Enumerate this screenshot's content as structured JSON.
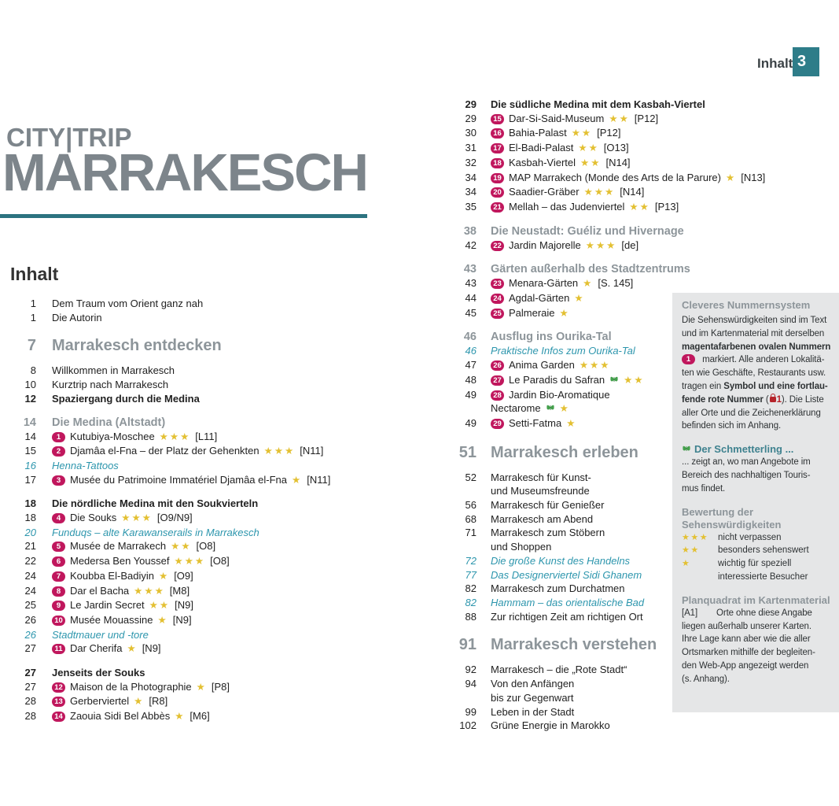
{
  "colors": {
    "teal_accent": "#2e7d89",
    "teal_rule": "#2c7380",
    "brand_gray": "#7d858b",
    "heading_gray": "#8d959a",
    "badge_magenta": "#c0175d",
    "star_gold": "#e3c032",
    "italic_teal": "#2d96ad",
    "sidebar_bg": "#e5e6e7",
    "sidebar_teal": "#3f828f",
    "butterfly_green": "#44a04c",
    "bag_red": "#b5232a",
    "text_black": "#222222"
  },
  "page_header": {
    "label": "Inhalt",
    "page_number": "3"
  },
  "brand": {
    "series": "CITY|TRIP",
    "title": "MARRAKESCH"
  },
  "toc": {
    "heading": "Inhalt",
    "left_column": [
      {
        "page": "1",
        "type": "plain",
        "label": "Dem Traum vom Orient ganz nah"
      },
      {
        "page": "1",
        "type": "plain",
        "label": "Die Autorin"
      },
      {
        "page": "7",
        "type": "chapter",
        "label": "Marrakesch entdecken"
      },
      {
        "page": "8",
        "type": "plain",
        "label": "Willkommen in Marrakesch"
      },
      {
        "page": "10",
        "type": "plain",
        "label": "Kurztrip nach Marrakesch"
      },
      {
        "page": "12",
        "type": "bold",
        "label": "Spaziergang durch die Medina"
      },
      {
        "page": "14",
        "type": "heading",
        "label": "Die Medina (Altstadt)",
        "gap": true
      },
      {
        "page": "14",
        "type": "poi",
        "num": "1",
        "label": "Kutubiya-Moschee",
        "stars": 3,
        "ref": "[L11]"
      },
      {
        "page": "15",
        "type": "poi",
        "num": "2",
        "label": "Djamâa el-Fna – der Platz der Gehenkten",
        "stars": 3,
        "ref": "[N11]"
      },
      {
        "page": "16",
        "type": "italic",
        "label": "Henna-Tattoos"
      },
      {
        "page": "17",
        "type": "poi",
        "num": "3",
        "label": "Musée du Patrimoine Immatériel Djamâa el-Fna",
        "stars": 1,
        "ref": "[N11]"
      },
      {
        "page": "18",
        "type": "bold",
        "label": "Die nördliche Medina mit den Soukvierteln",
        "gap": true
      },
      {
        "page": "18",
        "type": "poi",
        "num": "4",
        "label": "Die Souks",
        "stars": 3,
        "ref": "[O9/N9]"
      },
      {
        "page": "20",
        "type": "italic",
        "label": "Funduqs – alte Karawanserails in Marrakesch"
      },
      {
        "page": "21",
        "type": "poi",
        "num": "5",
        "label": "Musée de Marrakech",
        "stars": 2,
        "ref": "[O8]"
      },
      {
        "page": "22",
        "type": "poi",
        "num": "6",
        "label": "Medersa Ben Youssef",
        "stars": 3,
        "ref": "[O8]"
      },
      {
        "page": "24",
        "type": "poi",
        "num": "7",
        "label": "Koubba El-Badiyin",
        "stars": 1,
        "ref": "[O9]"
      },
      {
        "page": "24",
        "type": "poi",
        "num": "8",
        "label": "Dar el Bacha",
        "stars": 3,
        "ref": "[M8]"
      },
      {
        "page": "25",
        "type": "poi",
        "num": "9",
        "label": "Le Jardin Secret",
        "stars": 2,
        "ref": "[N9]"
      },
      {
        "page": "26",
        "type": "poi",
        "num": "10",
        "label": "Musée Mouassine",
        "stars": 1,
        "ref": "[N9]"
      },
      {
        "page": "26",
        "type": "italic",
        "label": "Stadtmauer und -tore"
      },
      {
        "page": "27",
        "type": "poi",
        "num": "11",
        "label": "Dar Cherifa",
        "stars": 1,
        "ref": "[N9]"
      },
      {
        "page": "27",
        "type": "bold",
        "label": "Jenseits der Souks",
        "gap": true
      },
      {
        "page": "27",
        "type": "poi",
        "num": "12",
        "label": "Maison de la Photographie",
        "stars": 1,
        "ref": "[P8]"
      },
      {
        "page": "28",
        "type": "poi",
        "num": "13",
        "label": "Gerberviertel",
        "stars": 1,
        "ref": "[R8]"
      },
      {
        "page": "28",
        "type": "poi",
        "num": "14",
        "label": "Zaouia Sidi Bel Abbès",
        "stars": 1,
        "ref": "[M6]"
      }
    ],
    "right_column": [
      {
        "page": "29",
        "type": "bold",
        "label": "Die südliche Medina mit dem Kasbah-Viertel"
      },
      {
        "page": "29",
        "type": "poi",
        "num": "15",
        "label": "Dar-Si-Said-Museum",
        "stars": 2,
        "ref": "[P12]"
      },
      {
        "page": "30",
        "type": "poi",
        "num": "16",
        "label": "Bahia-Palast",
        "stars": 2,
        "ref": "[P12]"
      },
      {
        "page": "31",
        "type": "poi",
        "num": "17",
        "label": "El-Badi-Palast",
        "stars": 2,
        "ref": "[O13]"
      },
      {
        "page": "32",
        "type": "poi",
        "num": "18",
        "label": "Kasbah-Viertel",
        "stars": 2,
        "ref": "[N14]"
      },
      {
        "page": "34",
        "type": "poi",
        "num": "19",
        "label": "MAP Marrakech (Monde des Arts de la Parure)",
        "stars": 1,
        "ref": "[N13]"
      },
      {
        "page": "34",
        "type": "poi",
        "num": "20",
        "label": "Saadier-Gräber",
        "stars": 3,
        "ref": "[N14]"
      },
      {
        "page": "35",
        "type": "poi",
        "num": "21",
        "label": "Mellah – das Judenviertel",
        "stars": 2,
        "ref": "[P13]"
      },
      {
        "page": "38",
        "type": "heading",
        "label": "Die Neustadt: Guéliz und Hivernage",
        "gap": true
      },
      {
        "page": "42",
        "type": "poi",
        "num": "22",
        "label": "Jardin Majorelle",
        "stars": 3,
        "ref": "[de]"
      },
      {
        "page": "43",
        "type": "heading",
        "label": "Gärten außerhalb des Stadtzentrums",
        "gap": true
      },
      {
        "page": "43",
        "type": "poi",
        "num": "23",
        "label": "Menara-Gärten",
        "stars": 1,
        "ref": "[S. 145]"
      },
      {
        "page": "44",
        "type": "poi",
        "num": "24",
        "label": "Agdal-Gärten",
        "stars": 1
      },
      {
        "page": "45",
        "type": "poi",
        "num": "25",
        "label": "Palmeraie",
        "stars": 1
      },
      {
        "page": "46",
        "type": "heading",
        "label": "Ausflug ins Ourika-Tal",
        "gap": true
      },
      {
        "page": "46",
        "type": "italic",
        "label": "Praktische Infos zum Ourika-Tal"
      },
      {
        "page": "47",
        "type": "poi",
        "num": "26",
        "label": "Anima Garden",
        "stars": 3
      },
      {
        "page": "48",
        "type": "poi",
        "num": "27",
        "label": "Le Paradis du Safran",
        "butterfly": true,
        "stars": 2
      },
      {
        "page": "49",
        "type": "poi",
        "num": "28",
        "label": "Jardin Bio-Aromatique",
        "label2": "Nectarome",
        "butterfly2": true,
        "stars2": 1
      },
      {
        "page": "49",
        "type": "poi",
        "num": "29",
        "label": "Setti-Fatma",
        "stars": 1
      },
      {
        "page": "51",
        "type": "chapter",
        "label": "Marrakesch erleben"
      },
      {
        "page": "52",
        "type": "plain",
        "label": "Marrakesch für Kunst-",
        "label2": "und Museumsfreunde"
      },
      {
        "page": "56",
        "type": "plain",
        "label": "Marrakesch für Genießer"
      },
      {
        "page": "68",
        "type": "plain",
        "label": "Marrakesch am Abend"
      },
      {
        "page": "71",
        "type": "plain",
        "label": "Marrakesch zum Stöbern",
        "label2": "und Shoppen"
      },
      {
        "page": "72",
        "type": "italic",
        "label": "Die große Kunst des Handelns"
      },
      {
        "page": "77",
        "type": "italic",
        "label": "Das Designerviertel Sidi Ghanem"
      },
      {
        "page": "82",
        "type": "plain",
        "label": "Marrakesch zum Durchatmen"
      },
      {
        "page": "82",
        "type": "italic",
        "label": "Hammam – das orientalische Bad"
      },
      {
        "page": "88",
        "type": "plain",
        "label": "Zur richtigen Zeit am richtigen Ort"
      },
      {
        "page": "91",
        "type": "chapter",
        "label": "Marrakesch verstehen"
      },
      {
        "page": "92",
        "type": "plain",
        "label": "Marrakesch – die „Rote Stadt“"
      },
      {
        "page": "94",
        "type": "plain",
        "label": "Von den Anfängen",
        "label2": "bis zur Gegenwart"
      },
      {
        "page": "99",
        "type": "plain",
        "label": "Leben in der Stadt"
      },
      {
        "page": "102",
        "type": "plain",
        "label": "Grüne Energie in Marokko"
      }
    ]
  },
  "sidebar": {
    "box1": {
      "title": "Cleveres Nummernsystem",
      "lines": [
        [
          {
            "t": "Die Sehenswürdigkeiten sind im Text"
          }
        ],
        [
          {
            "t": "und im Kartenmaterial mit derselben"
          }
        ],
        [
          {
            "t": "magentafarbenen ovalen Nummern",
            "b": true
          }
        ],
        [
          {
            "badge": "1"
          },
          {
            "t": " markiert. Alle anderen Lokalitä-"
          }
        ],
        [
          {
            "t": "ten wie Geschäfte, Restaurants usw."
          }
        ],
        [
          {
            "t": "tragen ein "
          },
          {
            "t": "Symbol und eine fortlau-",
            "b": true
          }
        ],
        [
          {
            "t": "fende rote Nummer",
            "b": true
          },
          {
            "t": " ("
          },
          {
            "bag": true
          },
          {
            "t": "1",
            "red": true
          },
          {
            "t": "). Die Liste"
          }
        ],
        [
          {
            "t": "aller Orte und die Zeichenerklärung"
          }
        ],
        [
          {
            "t": "befinden sich im Anhang."
          }
        ]
      ]
    },
    "box2": {
      "title": "Der Schmetterling ...",
      "lines": [
        "... zeigt an, wo man Angebote im",
        "Bereich des nachhaltigen Touris-",
        "mus findet."
      ]
    },
    "box3": {
      "title_line1": "Bewertung der",
      "title_line2": "Sehenswürdigkeiten",
      "legend": [
        {
          "stars": 3,
          "label": "nicht verpassen"
        },
        {
          "stars": 2,
          "label": "besonders sehenswert"
        },
        {
          "stars": 1,
          "label": "wichtig für speziell",
          "label2": "interessierte Besucher"
        }
      ]
    },
    "box4": {
      "title": "Planquadrat im Kartenmaterial",
      "ref": "[A1]",
      "first_line": "Orte ohne diese Angabe",
      "lines": [
        "liegen außerhalb unserer Karten.",
        "Ihre Lage kann aber wie die aller",
        "Ortsmarken mithilfe der begleiten-",
        "den Web-App angezeigt werden",
        "(s. Anhang)."
      ]
    }
  }
}
